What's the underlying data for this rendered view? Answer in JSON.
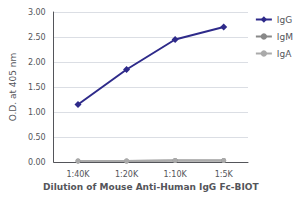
{
  "chart_data": {
    "type": "line",
    "xlabel": "Dilution of Mouse Anti-Human IgG Fc-BIOT",
    "ylabel": "O.D. at 405 nm",
    "categories": [
      "1:40K",
      "1:20K",
      "1:10K",
      "1:5K"
    ],
    "series": [
      {
        "name": "IgG",
        "color": "#2e2a8a",
        "marker": "diamond",
        "values": [
          1.15,
          1.85,
          2.45,
          2.7
        ]
      },
      {
        "name": "IgM",
        "color": "#888888",
        "marker": "circle",
        "values": [
          0.02,
          0.02,
          0.03,
          0.03
        ]
      },
      {
        "name": "IgA",
        "color": "#aaaaaa",
        "marker": "circle",
        "values": [
          0.02,
          0.02,
          0.03,
          0.03
        ]
      }
    ],
    "ylim": [
      0.0,
      3.0
    ],
    "yticks": [
      {
        "value": 0.0,
        "label": "0.00"
      },
      {
        "value": 0.5,
        "label": "0.50"
      },
      {
        "value": 1.0,
        "label": "1.00"
      },
      {
        "value": 1.5,
        "label": "1.50"
      },
      {
        "value": 2.0,
        "label": "2.00"
      },
      {
        "value": 2.5,
        "label": "2.50"
      },
      {
        "value": 3.0,
        "label": "3.00"
      }
    ],
    "grid": true,
    "legend": "upper right"
  }
}
